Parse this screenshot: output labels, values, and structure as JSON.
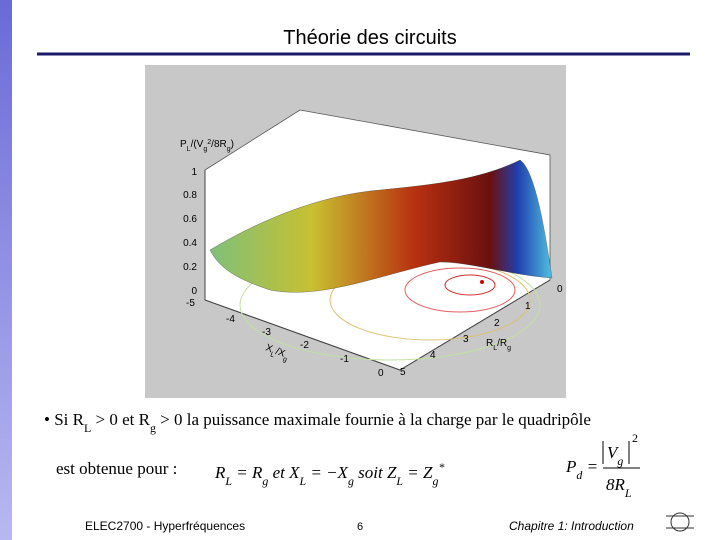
{
  "header": {
    "title": "Théorie des circuits"
  },
  "figure": {
    "zlabel": [
      "P",
      "L",
      "/(V",
      "g",
      "2",
      "/8R",
      "g",
      ")"
    ],
    "zticks": [
      "0",
      "0.2",
      "0.4",
      "0.6",
      "0.8",
      "1"
    ],
    "xticks": [
      "-5",
      "-4",
      "-3",
      "-2",
      "-1",
      "0"
    ],
    "xlabel": [
      "X",
      "L",
      "/X",
      "g"
    ],
    "yticks": [
      "0",
      "1",
      "2",
      "3",
      "4",
      "5"
    ],
    "ylabel": [
      "R",
      "L",
      "/R",
      "g"
    ]
  },
  "bullet": [
    "•",
    "Si R",
    "L",
    " > 0 et R",
    "g",
    " > 0 la puissance maximale fournie à la charge par le quadripôle"
  ],
  "line2": "est obtenue pour :",
  "formula": [
    "R",
    "L",
    " = R",
    "g",
    " et X",
    "L",
    " = −X",
    "g",
    " soit Z",
    "L",
    " = Z",
    "g",
    "*"
  ],
  "power": {
    "lhs": [
      "P",
      "d",
      " ="
    ],
    "num": [
      "V",
      "g",
      "2"
    ],
    "den": [
      "8R",
      "L"
    ]
  },
  "footer": {
    "course": "ELEC2700 - Hyperfréquences",
    "page": "6",
    "chapter": "Chapitre 1: Introduction"
  }
}
